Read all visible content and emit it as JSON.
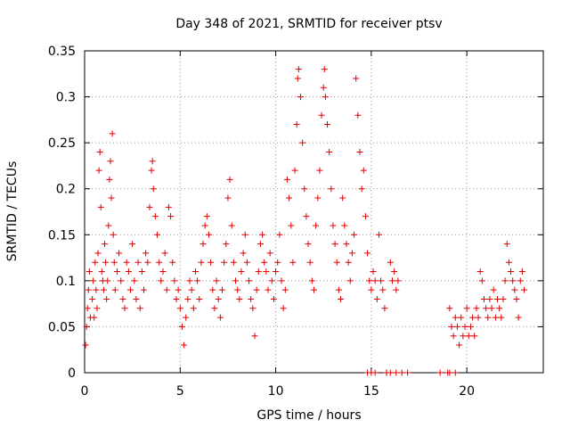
{
  "chart_data": {
    "type": "scatter",
    "title": "Day 348 of 2021, SRMTID for receiver ptsv",
    "xlabel": "GPS time / hours",
    "ylabel": "SRMTID / TECUs",
    "xlim": [
      0,
      24
    ],
    "ylim": [
      0,
      0.35
    ],
    "xticks": [
      0,
      5,
      10,
      15,
      20
    ],
    "yticks": [
      0,
      0.05,
      0.1,
      0.15,
      0.2,
      0.25,
      0.3,
      0.35
    ],
    "xtick_labels": [
      "0",
      "5",
      "10",
      "15",
      "20"
    ],
    "ytick_labels": [
      "0",
      "0.05",
      "0.1",
      "0.15",
      "0.2",
      "0.25",
      "0.3",
      "0.35"
    ],
    "grid": true,
    "marker": "+",
    "color": "#e00000",
    "series": [
      {
        "name": "SRMTID",
        "points": [
          [
            0.05,
            0.03
          ],
          [
            0.1,
            0.05
          ],
          [
            0.15,
            0.07
          ],
          [
            0.2,
            0.09
          ],
          [
            0.25,
            0.11
          ],
          [
            0.3,
            0.06
          ],
          [
            0.4,
            0.08
          ],
          [
            0.45,
            0.1
          ],
          [
            0.5,
            0.06
          ],
          [
            0.55,
            0.12
          ],
          [
            0.6,
            0.09
          ],
          [
            0.65,
            0.07
          ],
          [
            0.7,
            0.13
          ],
          [
            0.75,
            0.22
          ],
          [
            0.8,
            0.24
          ],
          [
            0.85,
            0.18
          ],
          [
            0.9,
            0.11
          ],
          [
            0.95,
            0.1
          ],
          [
            1.0,
            0.09
          ],
          [
            1.05,
            0.14
          ],
          [
            1.1,
            0.12
          ],
          [
            1.15,
            0.08
          ],
          [
            1.2,
            0.1
          ],
          [
            1.25,
            0.16
          ],
          [
            1.3,
            0.21
          ],
          [
            1.35,
            0.23
          ],
          [
            1.4,
            0.19
          ],
          [
            1.45,
            0.26
          ],
          [
            1.5,
            0.15
          ],
          [
            1.55,
            0.12
          ],
          [
            1.6,
            0.09
          ],
          [
            1.7,
            0.11
          ],
          [
            1.8,
            0.13
          ],
          [
            1.9,
            0.1
          ],
          [
            2.0,
            0.08
          ],
          [
            2.1,
            0.07
          ],
          [
            2.2,
            0.12
          ],
          [
            2.3,
            0.11
          ],
          [
            2.4,
            0.09
          ],
          [
            2.5,
            0.14
          ],
          [
            2.6,
            0.1
          ],
          [
            2.7,
            0.08
          ],
          [
            2.8,
            0.12
          ],
          [
            2.9,
            0.07
          ],
          [
            3.0,
            0.11
          ],
          [
            3.1,
            0.09
          ],
          [
            3.2,
            0.13
          ],
          [
            3.3,
            0.12
          ],
          [
            3.4,
            0.18
          ],
          [
            3.5,
            0.22
          ],
          [
            3.55,
            0.23
          ],
          [
            3.6,
            0.2
          ],
          [
            3.7,
            0.17
          ],
          [
            3.8,
            0.15
          ],
          [
            3.9,
            0.12
          ],
          [
            4.0,
            0.1
          ],
          [
            4.1,
            0.11
          ],
          [
            4.2,
            0.13
          ],
          [
            4.3,
            0.09
          ],
          [
            4.4,
            0.18
          ],
          [
            4.5,
            0.17
          ],
          [
            4.6,
            0.12
          ],
          [
            4.7,
            0.1
          ],
          [
            4.8,
            0.08
          ],
          [
            4.9,
            0.09
          ],
          [
            5.0,
            0.07
          ],
          [
            5.1,
            0.05
          ],
          [
            5.2,
            0.03
          ],
          [
            5.3,
            0.06
          ],
          [
            5.4,
            0.08
          ],
          [
            5.5,
            0.1
          ],
          [
            5.6,
            0.09
          ],
          [
            5.7,
            0.07
          ],
          [
            5.8,
            0.11
          ],
          [
            5.9,
            0.1
          ],
          [
            6.0,
            0.08
          ],
          [
            6.1,
            0.12
          ],
          [
            6.2,
            0.14
          ],
          [
            6.3,
            0.16
          ],
          [
            6.4,
            0.17
          ],
          [
            6.5,
            0.15
          ],
          [
            6.6,
            0.12
          ],
          [
            6.7,
            0.09
          ],
          [
            6.8,
            0.07
          ],
          [
            6.9,
            0.1
          ],
          [
            7.0,
            0.08
          ],
          [
            7.1,
            0.06
          ],
          [
            7.2,
            0.09
          ],
          [
            7.3,
            0.12
          ],
          [
            7.4,
            0.14
          ],
          [
            7.5,
            0.19
          ],
          [
            7.6,
            0.21
          ],
          [
            7.7,
            0.16
          ],
          [
            7.8,
            0.12
          ],
          [
            7.9,
            0.1
          ],
          [
            8.0,
            0.09
          ],
          [
            8.1,
            0.08
          ],
          [
            8.2,
            0.11
          ],
          [
            8.3,
            0.13
          ],
          [
            8.4,
            0.15
          ],
          [
            8.5,
            0.12
          ],
          [
            8.6,
            0.1
          ],
          [
            8.7,
            0.08
          ],
          [
            8.8,
            0.07
          ],
          [
            8.9,
            0.04
          ],
          [
            9.0,
            0.09
          ],
          [
            9.1,
            0.11
          ],
          [
            9.2,
            0.14
          ],
          [
            9.3,
            0.15
          ],
          [
            9.4,
            0.12
          ],
          [
            9.5,
            0.11
          ],
          [
            9.6,
            0.09
          ],
          [
            9.7,
            0.13
          ],
          [
            9.8,
            0.1
          ],
          [
            9.9,
            0.08
          ],
          [
            10.0,
            0.11
          ],
          [
            10.1,
            0.12
          ],
          [
            10.2,
            0.15
          ],
          [
            10.3,
            0.1
          ],
          [
            10.4,
            0.07
          ],
          [
            10.5,
            0.09
          ],
          [
            10.6,
            0.21
          ],
          [
            10.7,
            0.19
          ],
          [
            10.8,
            0.16
          ],
          [
            10.9,
            0.12
          ],
          [
            11.0,
            0.22
          ],
          [
            11.1,
            0.27
          ],
          [
            11.15,
            0.32
          ],
          [
            11.2,
            0.33
          ],
          [
            11.3,
            0.3
          ],
          [
            11.4,
            0.25
          ],
          [
            11.5,
            0.2
          ],
          [
            11.6,
            0.17
          ],
          [
            11.7,
            0.14
          ],
          [
            11.8,
            0.12
          ],
          [
            11.9,
            0.1
          ],
          [
            12.0,
            0.09
          ],
          [
            12.1,
            0.16
          ],
          [
            12.2,
            0.19
          ],
          [
            12.3,
            0.22
          ],
          [
            12.4,
            0.28
          ],
          [
            12.5,
            0.31
          ],
          [
            12.55,
            0.33
          ],
          [
            12.6,
            0.3
          ],
          [
            12.7,
            0.27
          ],
          [
            12.8,
            0.24
          ],
          [
            12.9,
            0.2
          ],
          [
            13.0,
            0.16
          ],
          [
            13.1,
            0.14
          ],
          [
            13.2,
            0.12
          ],
          [
            13.3,
            0.09
          ],
          [
            13.4,
            0.08
          ],
          [
            13.5,
            0.19
          ],
          [
            13.6,
            0.16
          ],
          [
            13.7,
            0.14
          ],
          [
            13.8,
            0.12
          ],
          [
            13.9,
            0.1
          ],
          [
            14.0,
            0.13
          ],
          [
            14.1,
            0.15
          ],
          [
            14.2,
            0.32
          ],
          [
            14.3,
            0.28
          ],
          [
            14.4,
            0.24
          ],
          [
            14.5,
            0.2
          ],
          [
            14.6,
            0.22
          ],
          [
            14.7,
            0.17
          ],
          [
            14.8,
            0.13
          ],
          [
            14.9,
            0.1
          ],
          [
            15.0,
            0.09
          ],
          [
            15.1,
            0.11
          ],
          [
            15.2,
            0.1
          ],
          [
            15.3,
            0.08
          ],
          [
            15.4,
            0.15
          ],
          [
            15.5,
            0.1
          ],
          [
            15.6,
            0.09
          ],
          [
            15.7,
            0.07
          ],
          [
            16.0,
            0.12
          ],
          [
            16.1,
            0.1
          ],
          [
            16.2,
            0.11
          ],
          [
            16.3,
            0.09
          ],
          [
            16.4,
            0.1
          ],
          [
            14.8,
            0.0
          ],
          [
            15.0,
            0.0
          ],
          [
            15.2,
            0.0
          ],
          [
            15.8,
            0.0
          ],
          [
            16.0,
            0.0
          ],
          [
            16.3,
            0.0
          ],
          [
            16.6,
            0.0
          ],
          [
            16.9,
            0.0
          ],
          [
            18.6,
            0.0
          ],
          [
            19.0,
            0.0
          ],
          [
            19.1,
            0.0
          ],
          [
            19.4,
            0.0
          ],
          [
            19.1,
            0.07
          ],
          [
            19.2,
            0.05
          ],
          [
            19.3,
            0.04
          ],
          [
            19.4,
            0.06
          ],
          [
            19.5,
            0.05
          ],
          [
            19.6,
            0.03
          ],
          [
            19.7,
            0.06
          ],
          [
            19.8,
            0.04
          ],
          [
            19.9,
            0.05
          ],
          [
            20.0,
            0.07
          ],
          [
            20.1,
            0.04
          ],
          [
            20.2,
            0.05
          ],
          [
            20.3,
            0.06
          ],
          [
            20.4,
            0.04
          ],
          [
            20.5,
            0.07
          ],
          [
            20.6,
            0.06
          ],
          [
            20.7,
            0.11
          ],
          [
            20.8,
            0.1
          ],
          [
            20.9,
            0.08
          ],
          [
            21.0,
            0.07
          ],
          [
            21.1,
            0.06
          ],
          [
            21.2,
            0.08
          ],
          [
            21.3,
            0.07
          ],
          [
            21.4,
            0.09
          ],
          [
            21.5,
            0.06
          ],
          [
            21.6,
            0.08
          ],
          [
            21.7,
            0.07
          ],
          [
            21.8,
            0.06
          ],
          [
            21.9,
            0.08
          ],
          [
            22.0,
            0.1
          ],
          [
            22.1,
            0.14
          ],
          [
            22.2,
            0.12
          ],
          [
            22.3,
            0.11
          ],
          [
            22.4,
            0.1
          ],
          [
            22.5,
            0.09
          ],
          [
            22.6,
            0.08
          ],
          [
            22.7,
            0.06
          ],
          [
            22.8,
            0.1
          ],
          [
            22.9,
            0.11
          ],
          [
            23.0,
            0.09
          ]
        ]
      }
    ]
  }
}
